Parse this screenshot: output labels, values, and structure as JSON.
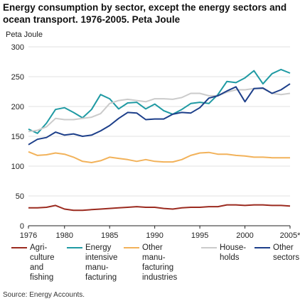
{
  "title": "Energy consumption by sector, except the energy sectors and ocean transport. 1976-2005. Peta Joule",
  "source": "Source: Energy Accounts.",
  "chart_data": {
    "type": "line",
    "ylabel": "Peta Joule",
    "ylim": [
      0,
      300
    ],
    "yticks": [
      "0",
      "50",
      "100",
      "150",
      "200",
      "250",
      "300"
    ],
    "xticks": [
      "1976",
      "1980",
      "1985",
      "1990",
      "1995",
      "2000",
      "2005*"
    ],
    "grid": true,
    "legend_position": "bottom",
    "x": [
      1976,
      1977,
      1978,
      1979,
      1980,
      1981,
      1982,
      1983,
      1984,
      1985,
      1986,
      1987,
      1988,
      1989,
      1990,
      1991,
      1992,
      1993,
      1994,
      1995,
      1996,
      1997,
      1998,
      1999,
      2000,
      2001,
      2002,
      2003,
      2004,
      2005
    ],
    "series": [
      {
        "name": "Agri-\nculture\nand\nfishing",
        "color": "#9b2a1f",
        "values": [
          30,
          30,
          31,
          34,
          28,
          26,
          26,
          27,
          28,
          29,
          30,
          31,
          32,
          31,
          31,
          29,
          28,
          30,
          31,
          31,
          32,
          32,
          35,
          35,
          34,
          35,
          35,
          34,
          34,
          33
        ]
      },
      {
        "name": "Energy\nintensive\nmanu-\nfacturing",
        "color": "#1f9aa3",
        "values": [
          162,
          155,
          172,
          195,
          198,
          190,
          181,
          195,
          220,
          213,
          196,
          206,
          207,
          196,
          204,
          193,
          187,
          195,
          205,
          207,
          205,
          220,
          242,
          240,
          248,
          260,
          238,
          255,
          262,
          256
        ]
      },
      {
        "name": "Other manu-\nfacturing\nindustries",
        "color": "#f2b25a",
        "values": [
          124,
          118,
          119,
          122,
          120,
          115,
          108,
          106,
          109,
          115,
          113,
          111,
          108,
          111,
          108,
          107,
          107,
          111,
          118,
          122,
          123,
          120,
          120,
          118,
          117,
          115,
          115,
          114,
          114,
          114
        ]
      },
      {
        "name": "House-\nholds",
        "color": "#cbcbcb",
        "values": [
          158,
          160,
          166,
          180,
          178,
          178,
          180,
          182,
          188,
          205,
          210,
          212,
          210,
          208,
          213,
          213,
          212,
          215,
          222,
          222,
          218,
          218,
          224,
          228,
          228,
          230,
          230,
          222,
          220,
          222
        ]
      },
      {
        "name": "Other\nsectors",
        "color": "#1d3f8a",
        "values": [
          136,
          145,
          148,
          157,
          152,
          154,
          150,
          152,
          159,
          168,
          180,
          190,
          189,
          178,
          179,
          179,
          187,
          190,
          189,
          198,
          214,
          218,
          226,
          233,
          208,
          230,
          231,
          222,
          228,
          238
        ]
      }
    ]
  }
}
